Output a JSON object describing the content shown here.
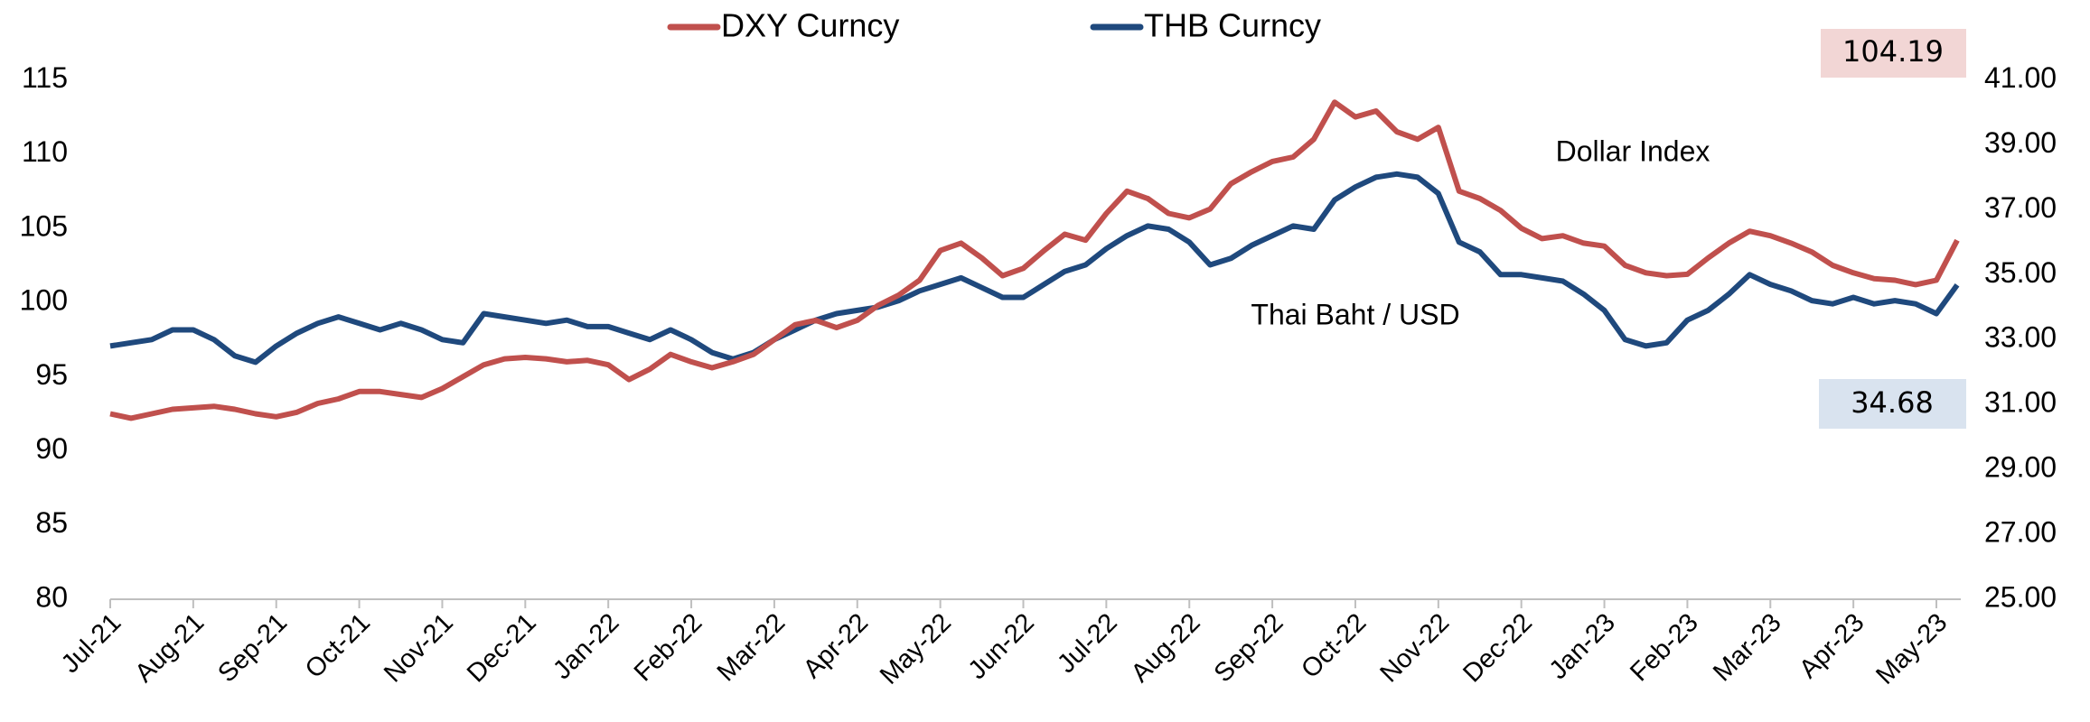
{
  "chart_data": {
    "type": "line",
    "categories": [
      "Jul-21",
      null,
      null,
      null,
      "Aug-21",
      null,
      null,
      null,
      "Sep-21",
      null,
      null,
      null,
      "Oct-21",
      null,
      null,
      null,
      "Nov-21",
      null,
      null,
      null,
      "Dec-21",
      null,
      null,
      null,
      "Jan-22",
      null,
      null,
      null,
      "Feb-22",
      null,
      null,
      null,
      "Mar-22",
      null,
      null,
      null,
      "Apr-22",
      null,
      null,
      null,
      "May-22",
      null,
      null,
      null,
      "Jun-22",
      null,
      null,
      null,
      "Jul-22",
      null,
      null,
      null,
      "Aug-22",
      null,
      null,
      null,
      "Sep-22",
      null,
      null,
      null,
      "Oct-22",
      null,
      null,
      null,
      "Nov-22",
      null,
      null,
      null,
      "Dec-22",
      null,
      null,
      null,
      "Jan-23",
      null,
      null,
      null,
      "Feb-23",
      null,
      null,
      null,
      "Mar-23",
      null,
      null,
      null,
      "Apr-23",
      null,
      null,
      null,
      "May-23",
      null
    ],
    "series": [
      {
        "name": "DXY Curncy",
        "color": "#c0504d",
        "axis": "y",
        "values": [
          92.5,
          92.2,
          92.5,
          92.8,
          92.9,
          93.0,
          92.8,
          92.5,
          92.3,
          92.6,
          93.2,
          93.5,
          94.0,
          94.0,
          93.8,
          93.6,
          94.2,
          95.0,
          95.8,
          96.2,
          96.3,
          96.2,
          96.0,
          96.1,
          95.8,
          94.8,
          95.5,
          96.5,
          96.0,
          95.6,
          96.0,
          96.5,
          97.5,
          98.5,
          98.8,
          98.3,
          98.8,
          99.8,
          100.5,
          101.5,
          103.5,
          104.0,
          103.0,
          101.8,
          102.3,
          103.5,
          104.6,
          104.2,
          106.0,
          107.5,
          107.0,
          106.0,
          105.7,
          106.3,
          108.0,
          108.8,
          109.5,
          109.8,
          111.0,
          113.5,
          112.5,
          112.9,
          111.5,
          111.0,
          111.8,
          107.5,
          107.0,
          106.2,
          105.0,
          104.3,
          104.5,
          104.0,
          103.8,
          102.5,
          102.0,
          101.8,
          101.9,
          103.0,
          104.0,
          104.8,
          104.5,
          104.0,
          103.4,
          102.5,
          102.0,
          101.6,
          101.5,
          101.2,
          101.5,
          104.19
        ]
      },
      {
        "name": "THB Curncy",
        "color": "#1f497d",
        "axis": "y2",
        "values": [
          32.8,
          32.9,
          33.0,
          33.3,
          33.3,
          33.0,
          32.5,
          32.3,
          32.8,
          33.2,
          33.5,
          33.7,
          33.5,
          33.3,
          33.5,
          33.3,
          33.0,
          32.9,
          33.8,
          33.7,
          33.6,
          33.5,
          33.6,
          33.4,
          33.4,
          33.2,
          33.0,
          33.3,
          33.0,
          32.6,
          32.4,
          32.6,
          33.0,
          33.3,
          33.6,
          33.8,
          33.9,
          34.0,
          34.2,
          34.5,
          34.7,
          34.9,
          34.6,
          34.3,
          34.3,
          34.7,
          35.1,
          35.3,
          35.8,
          36.2,
          36.5,
          36.4,
          36.0,
          35.3,
          35.5,
          35.9,
          36.2,
          36.5,
          36.4,
          37.3,
          37.7,
          38.0,
          38.1,
          38.0,
          37.5,
          36.0,
          35.7,
          35.0,
          35.0,
          34.9,
          34.8,
          34.4,
          33.9,
          33.0,
          32.8,
          32.9,
          33.6,
          33.9,
          34.4,
          35.0,
          34.7,
          34.5,
          34.2,
          34.1,
          34.3,
          34.1,
          34.2,
          34.1,
          33.8,
          34.68
        ]
      }
    ],
    "ylim": [
      80,
      115
    ],
    "yticks": [
      80,
      85,
      90,
      95,
      100,
      105,
      110,
      115
    ],
    "y2lim": [
      25,
      41
    ],
    "y2ticks": [
      {
        "value": 25,
        "label": "25.00"
      },
      {
        "value": 27,
        "label": "27.00"
      },
      {
        "value": 29,
        "label": "29.00"
      },
      {
        "value": 31,
        "label": "31.00"
      },
      {
        "value": 33,
        "label": "33.00"
      },
      {
        "value": 35,
        "label": "35.00"
      },
      {
        "value": 37,
        "label": "37.00"
      },
      {
        "value": 39,
        "label": "39.00"
      },
      {
        "value": 41,
        "label": "41.00"
      }
    ],
    "annotations": [
      "104.19",
      "34.68",
      "Dollar Index",
      "Thai Baht / USD"
    ],
    "legend": "top"
  }
}
